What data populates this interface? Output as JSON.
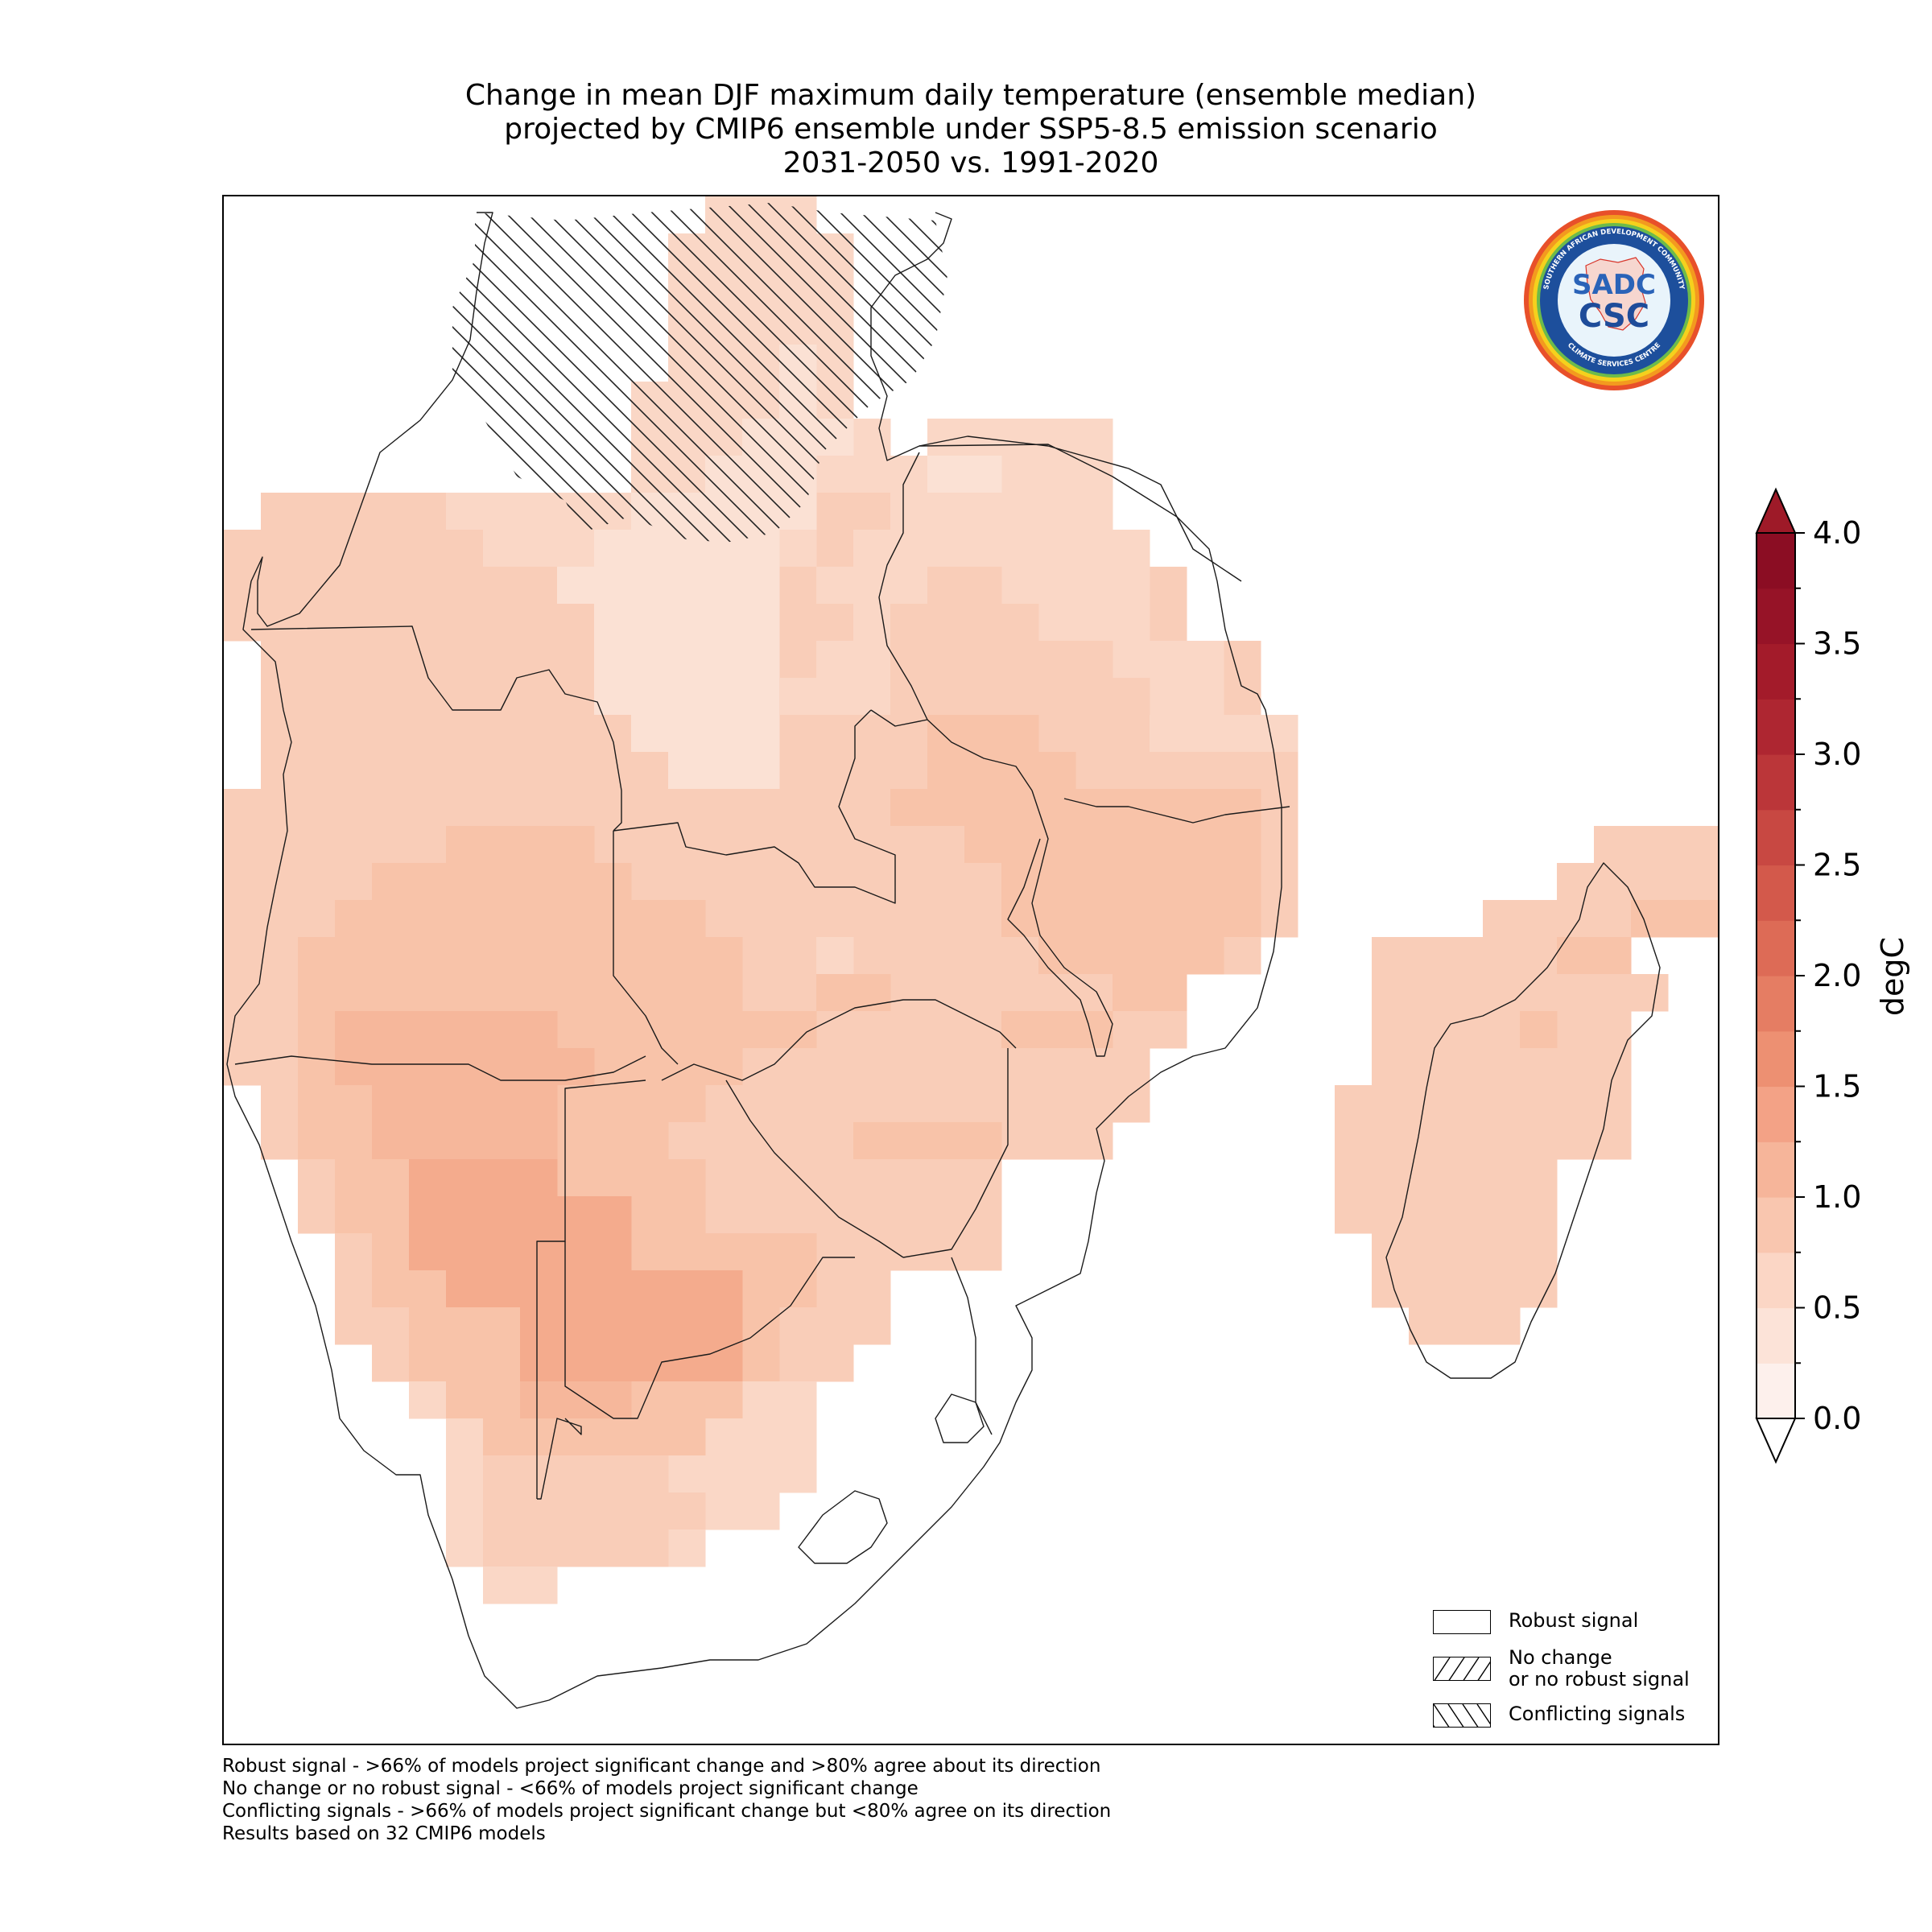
{
  "title_lines": [
    "Change in mean DJF maximum daily temperature (ensemble median)",
    "projected by CMIP6 ensemble under SSP5-8.5 emission scenario",
    "2031-2050 vs. 1991-2020"
  ],
  "logo": {
    "text_top": "SOUTHERN AFRICAN DEVELOPMENT COMMUNITY",
    "text_bottom": "CLIMATE SERVICES CENTRE",
    "abbr_top": "SADC",
    "abbr_bottom": "CSC"
  },
  "colorbar": {
    "label": "degC",
    "tick_labels": [
      "0.0",
      "0.5",
      "1.0",
      "1.5",
      "2.0",
      "2.5",
      "3.0",
      "3.5",
      "4.0"
    ],
    "min": 0.0,
    "max": 4.0,
    "step": 0.25,
    "colors": [
      "#fdf0ec",
      "#fce3d8",
      "#fbd6c5",
      "#f9c6af",
      "#f6b59a",
      "#f3a286",
      "#ed9072",
      "#e57d63",
      "#dd6b56",
      "#d3594b",
      "#c84842",
      "#bb3639",
      "#ae2631",
      "#a31b2a",
      "#961327",
      "#8b0d23"
    ],
    "extend": "both"
  },
  "legend": {
    "robust": "Robust signal",
    "no_change_line1": "No change",
    "no_change_line2": "or no robust signal",
    "conflicting": "Conflicting signals"
  },
  "footnotes": [
    "Robust signal - >66% of models project significant change and >80% agree about its direction",
    "No change or no robust signal - <66% of models project significant change",
    "Conflicting signals - >66% of models project significant change but <80% agree on its direction",
    "Results based on 32 CMIP6 models"
  ]
}
